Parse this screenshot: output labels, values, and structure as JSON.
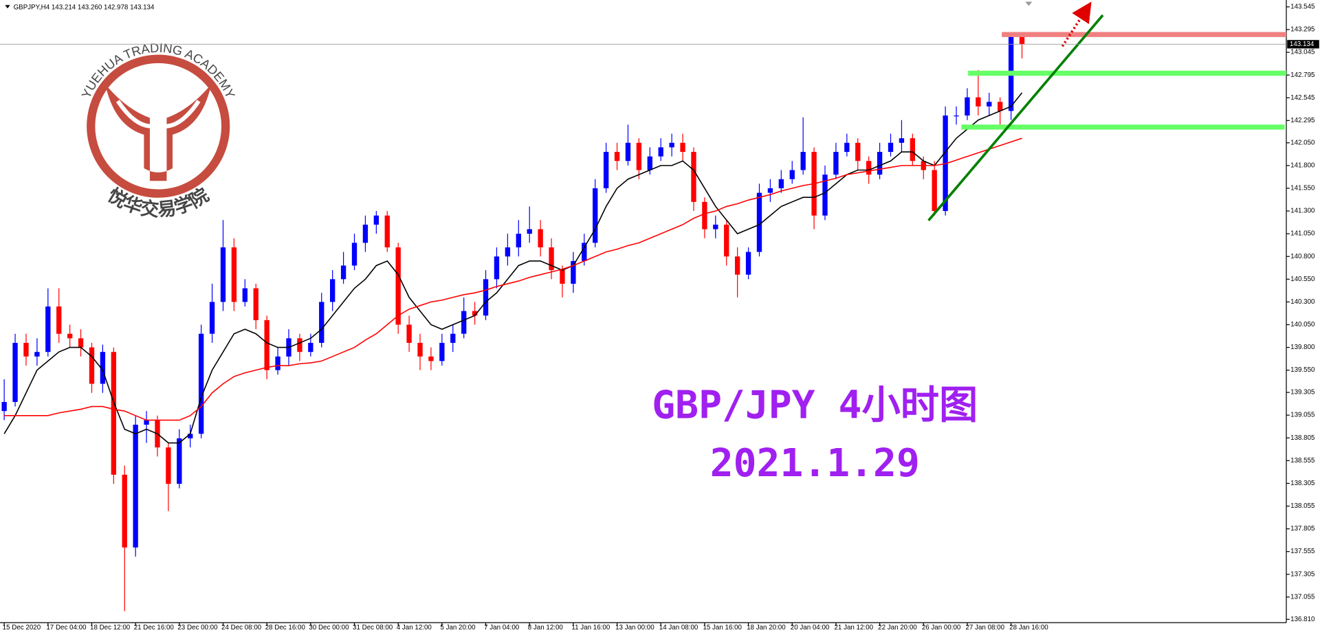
{
  "chart_data": {
    "type": "candlestick",
    "header": "GBPJPY,H4  143.214 143.260 142.978 143.134",
    "categories": [
      "15 Dec 2020",
      null,
      null,
      null,
      "17 Dec 04:00",
      null,
      null,
      null,
      "18 Dec 12:00",
      null,
      null,
      null,
      "21 Dec 16:00",
      null,
      null,
      null,
      "23 Dec 00:00",
      null,
      null,
      null,
      "24 Dec 08:00",
      null,
      null,
      null,
      "28 Dec 16:00",
      null,
      null,
      null,
      "30 Dec 00:00",
      null,
      null,
      null,
      "31 Dec 08:00",
      null,
      null,
      null,
      "4 Jan 12:00",
      null,
      null,
      null,
      "5 Jan 20:00",
      null,
      null,
      null,
      "7 Jan 04:00",
      null,
      null,
      null,
      "8 Jan 12:00",
      null,
      null,
      null,
      "11 Jan 16:00",
      null,
      null,
      null,
      "13 Jan 00:00",
      null,
      null,
      null,
      "14 Jan 08:00",
      null,
      null,
      null,
      "15 Jan 16:00",
      null,
      null,
      null,
      "18 Jan 20:00",
      null,
      null,
      null,
      "20 Jan 04:00",
      null,
      null,
      null,
      "21 Jan 12:00",
      null,
      null,
      null,
      "22 Jan 20:00",
      null,
      null,
      null,
      "26 Jan 00:00",
      null,
      null,
      null,
      "27 Jan 08:00",
      null,
      null,
      null,
      "28 Jan 16:00",
      null
    ],
    "open": [
      139.1,
      139.2,
      139.85,
      139.7,
      139.75,
      140.25,
      139.95,
      139.9,
      139.8,
      139.4,
      139.75,
      138.4,
      137.6,
      138.95,
      139.0,
      138.7,
      138.3,
      138.8,
      138.85,
      139.95,
      140.3,
      140.9,
      140.3,
      140.45,
      140.1,
      139.55,
      139.7,
      139.9,
      139.75,
      139.85,
      140.3,
      140.55,
      140.7,
      140.95,
      141.15,
      141.25,
      140.9,
      140.05,
      139.85,
      139.7,
      139.65,
      139.85,
      139.95,
      140.2,
      140.15,
      140.55,
      140.8,
      140.9,
      141.05,
      141.1,
      140.9,
      140.65,
      140.5,
      140.75,
      140.95,
      141.55,
      141.95,
      141.85,
      142.05,
      141.75,
      141.9,
      142.0,
      142.05,
      141.95,
      141.4,
      141.1,
      141.15,
      140.8,
      140.6,
      140.85,
      141.5,
      141.55,
      141.65,
      141.75,
      141.95,
      141.25,
      141.7,
      141.95,
      142.05,
      141.85,
      141.7,
      141.95,
      142.05,
      142.1,
      141.85,
      141.75,
      141.3,
      142.35,
      142.35,
      142.55,
      142.45,
      142.5,
      142.4,
      143.214
    ],
    "high": [
      139.45,
      139.95,
      139.95,
      139.9,
      140.45,
      140.45,
      140.05,
      140.0,
      139.85,
      139.83,
      139.8,
      138.5,
      139.05,
      139.1,
      139.05,
      138.75,
      138.9,
      138.95,
      140.05,
      140.5,
      141.2,
      141.0,
      140.55,
      140.5,
      140.15,
      139.8,
      140.0,
      139.95,
      139.95,
      140.4,
      140.65,
      140.85,
      141.05,
      141.25,
      141.3,
      141.3,
      140.95,
      140.15,
      139.95,
      139.8,
      139.95,
      140.05,
      140.35,
      140.3,
      140.65,
      140.9,
      141.05,
      141.2,
      141.35,
      141.2,
      141.0,
      140.7,
      140.85,
      141.05,
      141.65,
      142.05,
      142.05,
      142.25,
      142.1,
      142.0,
      142.1,
      142.15,
      142.15,
      142.0,
      141.45,
      141.25,
      141.2,
      140.9,
      140.9,
      141.6,
      141.65,
      141.75,
      141.85,
      142.33,
      142.0,
      141.8,
      142.05,
      142.15,
      142.1,
      141.9,
      142.05,
      142.15,
      142.3,
      142.15,
      141.9,
      141.85,
      142.45,
      142.45,
      142.65,
      142.85,
      142.6,
      142.55,
      143.25,
      143.26
    ],
    "low": [
      139.0,
      139.15,
      139.6,
      139.6,
      139.7,
      139.85,
      139.8,
      139.7,
      139.3,
      139.3,
      138.3,
      136.9,
      137.5,
      138.75,
      138.6,
      138.0,
      138.25,
      138.7,
      138.8,
      139.85,
      140.2,
      140.2,
      140.25,
      140.0,
      139.45,
      139.5,
      139.6,
      139.65,
      139.7,
      139.8,
      140.2,
      140.5,
      140.65,
      140.85,
      141.05,
      140.85,
      139.95,
      139.75,
      139.55,
      139.55,
      139.6,
      139.75,
      139.9,
      140.05,
      140.1,
      140.45,
      140.7,
      140.8,
      140.95,
      140.8,
      140.55,
      140.35,
      140.4,
      140.7,
      140.9,
      141.5,
      141.75,
      141.8,
      141.65,
      141.7,
      141.85,
      141.9,
      141.85,
      141.3,
      141.0,
      141.0,
      140.7,
      140.35,
      140.55,
      140.8,
      141.4,
      141.5,
      141.6,
      141.7,
      141.1,
      141.2,
      141.65,
      141.9,
      141.75,
      141.6,
      141.65,
      141.9,
      141.95,
      141.8,
      141.65,
      141.25,
      141.25,
      142.25,
      142.3,
      142.35,
      142.35,
      142.25,
      142.3,
      142.978
    ],
    "close": [
      139.2,
      139.85,
      139.7,
      139.75,
      140.25,
      139.95,
      139.9,
      139.8,
      139.4,
      139.75,
      138.4,
      137.6,
      138.95,
      139.0,
      138.7,
      138.3,
      138.8,
      138.85,
      139.95,
      140.3,
      140.9,
      140.3,
      140.45,
      140.1,
      139.55,
      139.7,
      139.9,
      139.75,
      139.85,
      140.3,
      140.55,
      140.7,
      140.95,
      141.15,
      141.25,
      140.9,
      140.05,
      139.85,
      139.7,
      139.65,
      139.85,
      139.95,
      140.2,
      140.15,
      140.55,
      140.8,
      140.9,
      141.05,
      141.1,
      140.9,
      140.65,
      140.5,
      140.75,
      140.95,
      141.55,
      141.95,
      141.85,
      142.05,
      141.75,
      141.9,
      142.0,
      142.05,
      141.95,
      141.4,
      141.1,
      141.15,
      140.8,
      140.6,
      140.85,
      141.5,
      141.55,
      141.65,
      141.75,
      141.95,
      141.25,
      141.7,
      141.95,
      142.05,
      141.85,
      141.7,
      141.95,
      142.05,
      142.1,
      141.85,
      141.75,
      141.3,
      142.35,
      142.35,
      142.55,
      142.45,
      142.5,
      142.4,
      143.214,
      143.134
    ],
    "up_color": "#0000ff",
    "down_color": "#ff0000",
    "lines": [
      {
        "color": "#000000",
        "values": [
          138.85,
          139.05,
          139.3,
          139.55,
          139.65,
          139.75,
          139.8,
          139.8,
          139.7,
          139.55,
          139.2,
          138.9,
          138.85,
          138.9,
          138.85,
          138.75,
          138.75,
          138.85,
          139.25,
          139.55,
          139.75,
          139.95,
          140.0,
          139.95,
          139.85,
          139.8,
          139.8,
          139.85,
          139.9,
          140.0,
          140.15,
          140.3,
          140.45,
          140.55,
          140.7,
          140.75,
          140.6,
          140.35,
          140.2,
          140.05,
          140.0,
          140.05,
          140.1,
          140.15,
          140.3,
          140.4,
          140.55,
          140.7,
          140.75,
          140.75,
          140.7,
          140.65,
          140.7,
          140.9,
          141.1,
          141.35,
          141.55,
          141.65,
          141.7,
          141.75,
          141.8,
          141.8,
          141.85,
          141.75,
          141.55,
          141.35,
          141.2,
          141.05,
          141.1,
          141.15,
          141.25,
          141.35,
          141.4,
          141.45,
          141.45,
          141.5,
          141.6,
          141.7,
          141.75,
          141.75,
          141.8,
          141.85,
          141.95,
          141.95,
          141.85,
          141.8,
          141.95,
          142.1,
          142.2,
          142.3,
          142.35,
          142.4,
          142.45,
          142.6
        ]
      },
      {
        "color": "#ff0000",
        "values": [
          139.05,
          139.05,
          139.05,
          139.05,
          139.05,
          139.08,
          139.1,
          139.12,
          139.15,
          139.15,
          139.12,
          139.1,
          139.05,
          139.0,
          139.0,
          139.0,
          139.0,
          139.05,
          139.15,
          139.3,
          139.4,
          139.48,
          139.52,
          139.55,
          139.58,
          139.6,
          139.6,
          139.62,
          139.63,
          139.65,
          139.7,
          139.75,
          139.8,
          139.88,
          139.95,
          140.05,
          140.15,
          140.22,
          140.26,
          140.3,
          140.32,
          140.35,
          140.38,
          140.4,
          140.43,
          140.47,
          140.5,
          140.53,
          140.57,
          140.6,
          140.63,
          140.66,
          140.7,
          140.75,
          140.8,
          140.85,
          140.88,
          140.92,
          140.95,
          141.0,
          141.05,
          141.1,
          141.15,
          141.22,
          141.27,
          141.3,
          141.35,
          141.38,
          141.42,
          141.45,
          141.48,
          141.52,
          141.55,
          141.58,
          141.6,
          141.63,
          141.66,
          141.7,
          141.72,
          141.74,
          141.76,
          141.78,
          141.8,
          141.8,
          141.8,
          141.8,
          141.82,
          141.86,
          141.9,
          141.94,
          141.98,
          142.02,
          142.06,
          142.1
        ]
      }
    ],
    "ylim": [
      136.773,
      143.62
    ],
    "yticks": [
      143.545,
      143.295,
      143.045,
      142.795,
      142.545,
      142.295,
      {
        "value": 142.05,
        "label": "142.050"
      },
      {
        "value": 141.8,
        "label": "141.800"
      },
      {
        "value": 141.55,
        "label": "141.550"
      },
      {
        "value": 141.3,
        "label": "141.300"
      },
      {
        "value": 141.05,
        "label": "141.050"
      },
      {
        "value": 140.8,
        "label": "140.800"
      },
      {
        "value": 140.55,
        "label": "140.550"
      },
      {
        "value": 140.3,
        "label": "140.300"
      },
      {
        "value": 140.05,
        "label": "140.050"
      },
      {
        "value": 139.8,
        "label": "139.800"
      },
      {
        "value": 139.55,
        "label": "139.550"
      },
      139.305,
      139.055,
      138.805,
      138.555,
      138.305,
      138.055,
      137.805,
      137.555,
      137.305,
      137.055,
      {
        "value": 136.81,
        "label": "136.810"
      }
    ],
    "annotations": [
      "GBP/JPY 4小时图",
      "2021.1.29"
    ],
    "watermark": {
      "text": "YUEHUA TRADING ACADEMY",
      "subtitle": "悦华交易学院"
    }
  }
}
